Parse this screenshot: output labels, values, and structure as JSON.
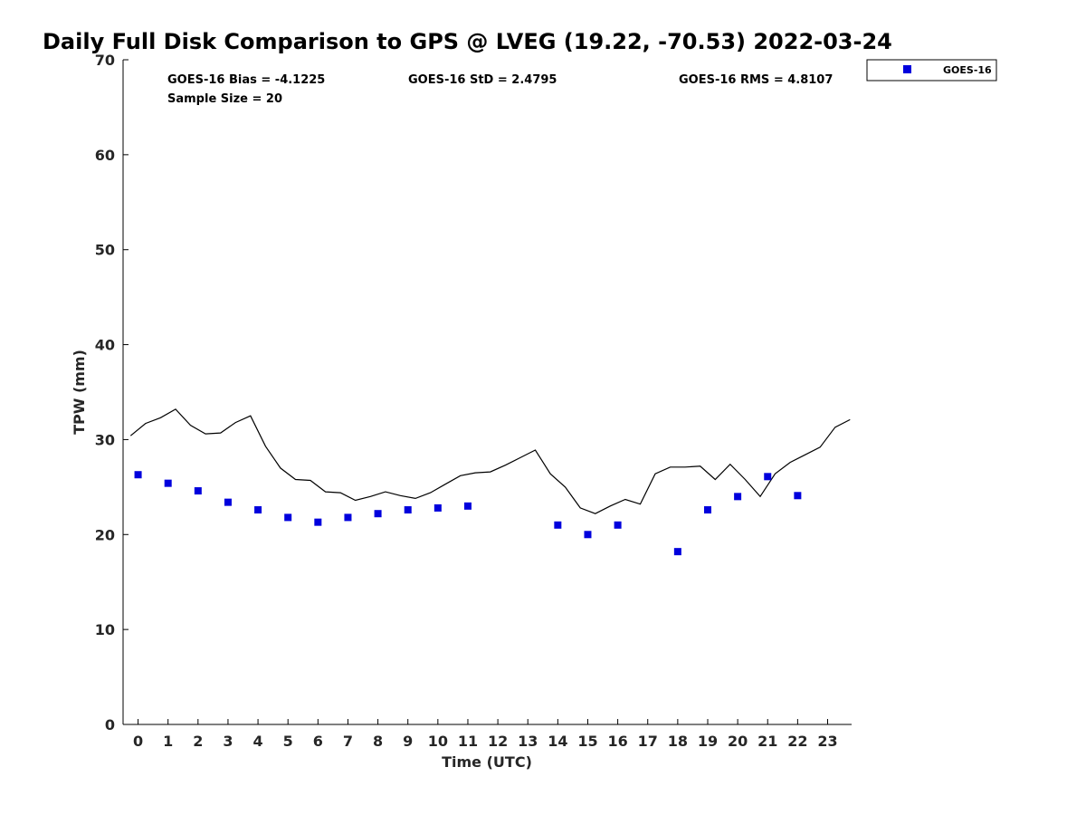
{
  "chart_data": {
    "type": "scatter",
    "title": "Daily Full Disk Comparison to GPS @ LVEG (19.22, -70.53) 2022-03-24",
    "xlabel": "Time (UTC)",
    "ylabel": "TPW (mm)",
    "xlim": [
      -0.5,
      23.8
    ],
    "ylim": [
      0,
      70
    ],
    "x_ticks": [
      0,
      1,
      2,
      3,
      4,
      5,
      6,
      7,
      8,
      9,
      10,
      11,
      12,
      13,
      14,
      15,
      16,
      17,
      18,
      19,
      20,
      21,
      22,
      23
    ],
    "y_ticks": [
      0,
      10,
      20,
      30,
      40,
      50,
      60,
      70
    ],
    "grid": false,
    "legend_position": "top-right-outside",
    "stats": {
      "bias": "GOES-16 Bias = -4.1225",
      "std": "GOES-16 StD = 2.4795",
      "rms": "GOES-16 RMS = 4.8107",
      "sample_size": "Sample Size = 20"
    },
    "series": [
      {
        "name": "GOES-16",
        "marker": "square",
        "color": "#0000dd",
        "x": [
          0,
          1,
          2,
          3,
          4,
          5,
          6,
          7,
          8,
          9,
          10,
          11,
          14,
          15,
          16,
          18,
          19,
          20,
          21,
          22
        ],
        "y": [
          26.3,
          25.4,
          24.6,
          23.4,
          22.6,
          21.8,
          21.3,
          21.8,
          22.2,
          22.6,
          22.8,
          23.0,
          21.0,
          20.0,
          21.0,
          18.2,
          22.6,
          24.0,
          26.1,
          24.1
        ]
      },
      {
        "marker": "line",
        "color": "#000000",
        "x": [
          -0.25,
          0.25,
          0.75,
          1.25,
          1.75,
          2.25,
          2.75,
          3.25,
          3.75,
          4.25,
          4.75,
          5.25,
          5.75,
          6.25,
          6.75,
          7.25,
          7.75,
          8.25,
          8.75,
          9.25,
          9.75,
          10.25,
          10.75,
          11.25,
          11.75,
          12.25,
          12.75,
          13.25,
          13.75,
          14.25,
          14.75,
          15.25,
          15.75,
          16.25,
          16.75,
          17.25,
          17.75,
          18.25,
          18.75,
          19.25,
          19.75,
          20.25,
          20.75,
          21.25,
          21.75,
          22.25,
          22.75,
          23.25,
          23.75
        ],
        "y": [
          30.4,
          31.7,
          32.3,
          33.2,
          31.5,
          30.6,
          30.7,
          31.8,
          32.5,
          29.3,
          27.0,
          25.8,
          25.7,
          24.5,
          24.4,
          23.6,
          24.0,
          24.5,
          24.1,
          23.8,
          24.4,
          25.3,
          26.2,
          26.5,
          26.6,
          27.3,
          28.1,
          28.9,
          26.4,
          25.0,
          22.8,
          22.2,
          23.0,
          23.7,
          23.2,
          26.4,
          27.1,
          27.1,
          27.2,
          25.8,
          27.4,
          25.8,
          24.0,
          26.4,
          27.6,
          28.4,
          29.2,
          31.3,
          32.1
        ]
      }
    ]
  }
}
